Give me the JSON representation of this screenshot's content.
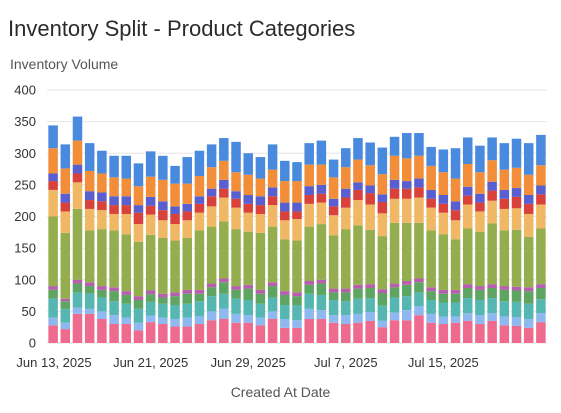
{
  "chart_data": {
    "type": "bar",
    "stacked": true,
    "title": "Inventory Split - Product Categories",
    "ylabel": "Inventory Volume",
    "xlabel": "Created At Date",
    "ylim": [
      0,
      400
    ],
    "yticks": [
      0,
      50,
      100,
      150,
      200,
      250,
      300,
      350,
      400
    ],
    "x_tick_labels": [
      {
        "index": 0,
        "label": "Jun 13, 2025"
      },
      {
        "index": 8,
        "label": "Jun 21, 2025"
      },
      {
        "index": 16,
        "label": "Jun 29, 2025"
      },
      {
        "index": 24,
        "label": "Jul 7, 2025"
      },
      {
        "index": 32,
        "label": "Jul 15, 2025"
      }
    ],
    "categories": [
      "2025-06-13",
      "2025-06-14",
      "2025-06-15",
      "2025-06-16",
      "2025-06-17",
      "2025-06-18",
      "2025-06-19",
      "2025-06-20",
      "2025-06-21",
      "2025-06-22",
      "2025-06-23",
      "2025-06-24",
      "2025-06-25",
      "2025-06-26",
      "2025-06-27",
      "2025-06-28",
      "2025-06-29",
      "2025-06-30",
      "2025-07-01",
      "2025-07-02",
      "2025-07-03",
      "2025-07-04",
      "2025-07-05",
      "2025-07-06",
      "2025-07-07",
      "2025-07-08",
      "2025-07-09",
      "2025-07-10",
      "2025-07-11",
      "2025-07-12",
      "2025-07-13",
      "2025-07-14",
      "2025-07-15",
      "2025-07-16",
      "2025-07-17",
      "2025-07-18",
      "2025-07-19",
      "2025-07-20",
      "2025-07-21",
      "2025-07-22",
      "2025-07-23"
    ],
    "series": [
      {
        "color": "#ee6b8e",
        "values": [
          28,
          22,
          46,
          46,
          38,
          30,
          30,
          20,
          33,
          30,
          26,
          26,
          30,
          36,
          38,
          32,
          32,
          28,
          38,
          24,
          24,
          38,
          38,
          32,
          30,
          32,
          35,
          25,
          36,
          36,
          44,
          32,
          30,
          32,
          35,
          30,
          35,
          28,
          27,
          24,
          33
        ]
      },
      {
        "color": "#8fb7f0",
        "values": [
          12,
          10,
          10,
          8,
          12,
          14,
          10,
          12,
          10,
          10,
          12,
          14,
          12,
          14,
          16,
          14,
          12,
          12,
          12,
          14,
          12,
          16,
          14,
          12,
          14,
          14,
          14,
          10,
          12,
          16,
          14,
          14,
          12,
          10,
          12,
          14,
          12,
          14,
          14,
          14,
          14
        ]
      },
      {
        "color": "#56b6b2",
        "values": [
          30,
          22,
          24,
          24,
          22,
          22,
          22,
          22,
          22,
          22,
          22,
          22,
          24,
          24,
          24,
          24,
          24,
          22,
          22,
          22,
          24,
          24,
          24,
          24,
          22,
          24,
          22,
          24,
          24,
          22,
          22,
          22,
          22,
          22,
          24,
          24,
          24,
          24,
          24,
          24,
          22
        ]
      },
      {
        "color": "#5ea561",
        "values": [
          14,
          12,
          14,
          12,
          12,
          16,
          14,
          14,
          12,
          10,
          14,
          16,
          12,
          14,
          18,
          14,
          18,
          16,
          18,
          16,
          14,
          14,
          18,
          12,
          14,
          16,
          16,
          20,
          16,
          18,
          16,
          14,
          14,
          14,
          16,
          16,
          16,
          18,
          18,
          20,
          18
        ]
      },
      {
        "color": "#b65fad",
        "values": [
          6,
          4,
          6,
          6,
          6,
          6,
          6,
          6,
          6,
          6,
          6,
          6,
          6,
          6,
          6,
          6,
          6,
          6,
          6,
          6,
          6,
          6,
          6,
          6,
          6,
          6,
          6,
          6,
          6,
          6,
          6,
          6,
          6,
          6,
          6,
          6,
          6,
          6,
          6,
          6,
          6
        ]
      },
      {
        "color": "#94ad4e",
        "values": [
          110,
          104,
          112,
          82,
          90,
          90,
          90,
          86,
          88,
          88,
          82,
          82,
          94,
          90,
          90,
          90,
          84,
          90,
          88,
          82,
          82,
          86,
          88,
          84,
          94,
          94,
          86,
          84,
          96,
          92,
          88,
          90,
          88,
          80,
          88,
          86,
          96,
          88,
          90,
          80,
          88
        ]
      },
      {
        "color": "#f0b865",
        "values": [
          42,
          34,
          42,
          34,
          30,
          26,
          32,
          28,
          32,
          28,
          26,
          28,
          28,
          32,
          38,
          34,
          30,
          30,
          34,
          30,
          34,
          36,
          34,
          32,
          34,
          40,
          40,
          36,
          38,
          38,
          40,
          36,
          34,
          30,
          38,
          32,
          36,
          34,
          34,
          36,
          38
        ]
      },
      {
        "color": "#d9413b",
        "values": [
          14,
          14,
          14,
          14,
          14,
          14,
          14,
          18,
          14,
          16,
          16,
          14,
          14,
          16,
          14,
          14,
          14,
          14,
          14,
          14,
          12,
          14,
          14,
          14,
          16,
          16,
          18,
          18,
          16,
          16,
          16,
          14,
          14,
          16,
          14,
          14,
          16,
          16,
          18,
          16,
          16
        ]
      },
      {
        "color": "#5a5fd0",
        "values": [
          12,
          14,
          14,
          14,
          14,
          14,
          14,
          12,
          14,
          14,
          12,
          12,
          12,
          12,
          14,
          12,
          14,
          14,
          14,
          14,
          14,
          14,
          14,
          12,
          14,
          12,
          12,
          12,
          14,
          12,
          14,
          14,
          14,
          14,
          14,
          14,
          14,
          14,
          14,
          14,
          14
        ]
      },
      {
        "color": "#f28e39",
        "values": [
          40,
          40,
          38,
          32,
          30,
          30,
          28,
          30,
          32,
          34,
          36,
          32,
          32,
          34,
          30,
          30,
          32,
          28,
          28,
          34,
          34,
          34,
          32,
          34,
          34,
          36,
          32,
          32,
          38,
          36,
          36,
          38,
          36,
          36,
          36,
          34,
          34,
          32,
          32,
          32,
          32
        ]
      },
      {
        "color": "#4a8ade",
        "values": [
          36,
          38,
          38,
          44,
          36,
          34,
          36,
          36,
          40,
          38,
          28,
          42,
          40,
          36,
          36,
          48,
          34,
          34,
          40,
          32,
          30,
          34,
          38,
          28,
          30,
          34,
          36,
          42,
          30,
          40,
          36,
          30,
          36,
          48,
          42,
          42,
          36,
          42,
          46,
          50,
          48
        ]
      }
    ]
  }
}
